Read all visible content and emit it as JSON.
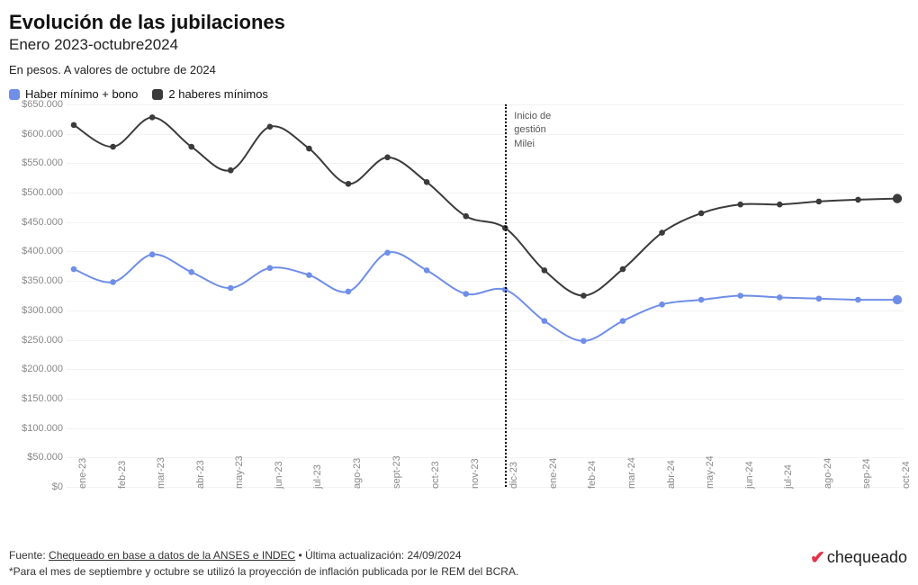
{
  "header": {
    "title": "Evolución de las jubilaciones",
    "subtitle": "Enero 2023-octubre2024",
    "caption": "En pesos. A valores de octubre de 2024"
  },
  "legend": {
    "series1": {
      "label": "Haber mínimo + bono",
      "color": "#6f8ee8"
    },
    "series2": {
      "label": "2 haberes mínimos",
      "color": "#3b3b3b"
    }
  },
  "chart": {
    "type": "line",
    "ylim": [
      0,
      650000
    ],
    "ytick_step": 50000,
    "ylabels": [
      "$0",
      "$50.000",
      "$100.000",
      "$150.000",
      "$200.000",
      "$250.000",
      "$300.000",
      "$350.000",
      "$400.000",
      "$450.000",
      "$500.000",
      "$550.000",
      "$600.000",
      "$650.000"
    ],
    "xlabels": [
      "ene-23",
      "feb-23",
      "mar-23",
      "abr-23",
      "may-23",
      "jun-23",
      "jul-23",
      "ago-23",
      "sept-23",
      "oct-23",
      "nov-23",
      "dic-23",
      "ene-24",
      "feb-24",
      "mar-24",
      "abr-24",
      "may-24",
      "jun-24",
      "jul-24",
      "ago-24",
      "sep-24",
      "oct-24"
    ],
    "series1_values": [
      370000,
      348000,
      395000,
      365000,
      338000,
      372000,
      360000,
      332000,
      398000,
      368000,
      328000,
      335000,
      282000,
      248000,
      282000,
      310000,
      318000,
      325000,
      322000,
      320000,
      318000,
      318000
    ],
    "series2_values": [
      615000,
      578000,
      628000,
      578000,
      538000,
      612000,
      575000,
      515000,
      560000,
      518000,
      460000,
      440000,
      368000,
      325000,
      370000,
      432000,
      465000,
      480000,
      480000,
      485000,
      488000,
      490000
    ],
    "marker_radius": 3.3,
    "line_width": 2,
    "highlight_radius": 5.2,
    "grid_color": "#f2f2f2",
    "divider": {
      "x_index": 11,
      "label1": "Inicio de",
      "label2": "gestión",
      "label3": "Milei"
    }
  },
  "footer": {
    "prefix": "Fuente: ",
    "source": "Chequeado en base a datos de la ANSES e INDEC",
    "updated": " • Última actualización: 24/09/2024",
    "note": "*Para el mes de septiembre y octubre se utilizó la proyección de inflación publicada por le REM del BCRA."
  },
  "brand": {
    "check": "✔",
    "name": "chequeado"
  }
}
